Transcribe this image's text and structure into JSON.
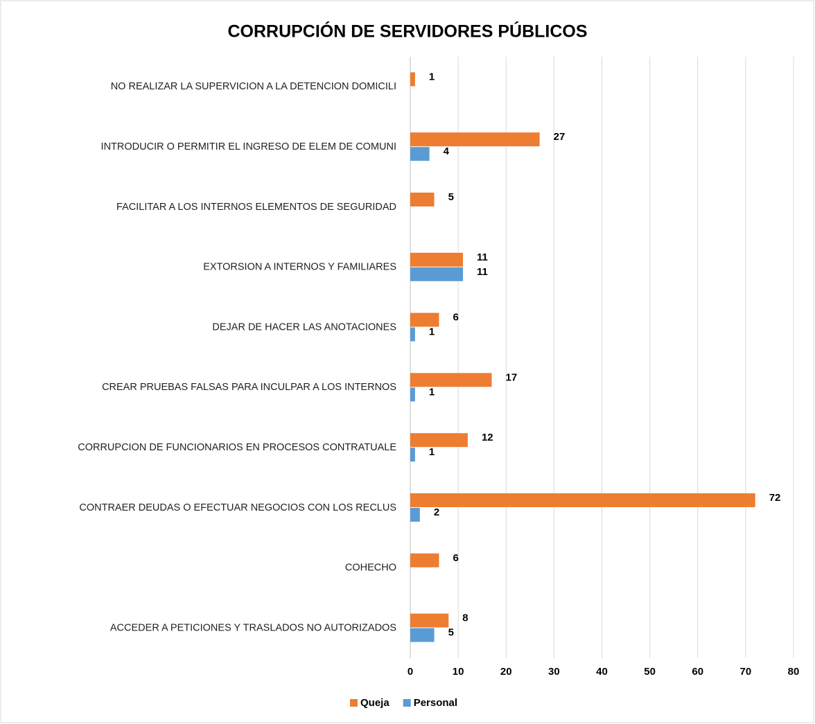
{
  "chart_data": {
    "type": "hbar",
    "title": "CORRUPCIÓN DE SERVIDORES PÚBLICOS",
    "categories": [
      "NO REALIZAR LA SUPERVICION A LA DETENCION DOMICILI",
      "INTRODUCIR O PERMITIR EL INGRESO DE ELEM DE COMUNI",
      "FACILITAR A LOS INTERNOS ELEMENTOS DE SEGURIDAD",
      "EXTORSION A INTERNOS Y FAMILIARES",
      "DEJAR DE HACER LAS ANOTACIONES",
      "CREAR PRUEBAS FALSAS PARA INCULPAR A LOS INTERNOS",
      "CORRUPCION DE FUNCIONARIOS EN PROCESOS CONTRATUALE",
      "CONTRAER DEUDAS O EFECTUAR NEGOCIOS CON LOS RECLUS",
      "COHECHO",
      "ACCEDER A PETICIONES Y TRASLADOS NO AUTORIZADOS"
    ],
    "series": [
      {
        "name": "Queja",
        "color": "#ed7d31",
        "values": [
          1,
          27,
          5,
          11,
          6,
          17,
          12,
          72,
          6,
          8
        ]
      },
      {
        "name": "Personal",
        "color": "#5b9bd5",
        "values": [
          null,
          4,
          null,
          11,
          1,
          1,
          1,
          2,
          null,
          5
        ]
      }
    ],
    "xlim": [
      0,
      80
    ],
    "xticks": [
      0,
      10,
      20,
      30,
      40,
      50,
      60,
      70,
      80
    ],
    "grid": true,
    "legend": "bottom"
  }
}
